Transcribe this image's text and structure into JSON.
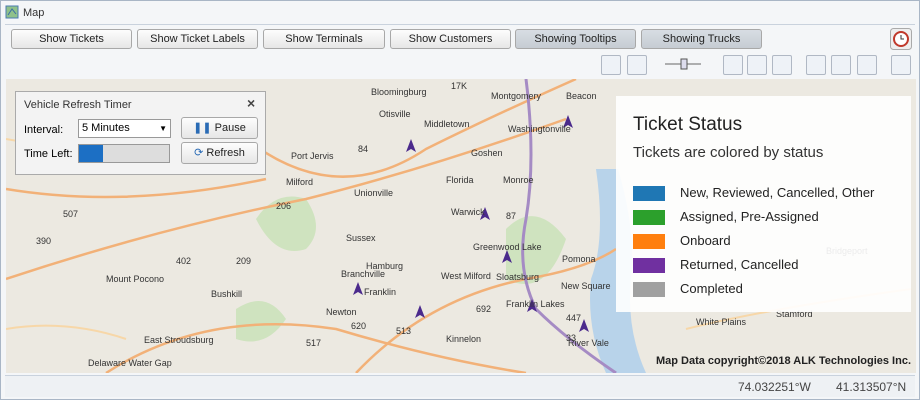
{
  "window": {
    "title": "Map"
  },
  "buttons": [
    "Show Tickets",
    "Show Ticket Labels",
    "Show Terminals",
    "Show Customers",
    "Showing Tooltips",
    "Showing Trucks"
  ],
  "timer": {
    "title": "Vehicle Refresh Timer",
    "interval_label": "Interval:",
    "interval_value": "5 Minutes",
    "time_left_label": "Time Left:",
    "pause": "Pause",
    "refresh": "Refresh"
  },
  "legend": {
    "title": "Ticket Status",
    "subtitle": "Tickets are colored by status",
    "items": [
      {
        "label": "New, Reviewed, Cancelled, Other",
        "color": "#1f77b4"
      },
      {
        "label": "Assigned, Pre-Assigned",
        "color": "#2ca02c"
      },
      {
        "label": "Onboard",
        "color": "#ff7f0e"
      },
      {
        "label": "Returned, Cancelled",
        "color": "#7030a0"
      },
      {
        "label": "Completed",
        "color": "#a0a0a0"
      }
    ]
  },
  "map": {
    "labels": [
      "Bloomingburg",
      "17K",
      "Montgomery",
      "Beacon",
      "Otisville",
      "Middletown",
      "Washingtonville",
      "84",
      "Port Jervis",
      "Goshen",
      "Milford",
      "206",
      "Unionville",
      "Florida",
      "Monroe",
      "209",
      "Warwick",
      "87",
      "Sussex",
      "Greenwood Lake",
      "402",
      "507",
      "390",
      "Branchville",
      "Hamburg",
      "West Milford",
      "Sloatsburg",
      "Pomona",
      "Mount Pocono",
      "Bushkill",
      "Franklin",
      "Newton",
      "New Square",
      "Bridgeport",
      "Kinnelon",
      "Franklin Lakes",
      "620",
      "692",
      "513",
      "517",
      "White Plains",
      "Stamford",
      "East Stroudsburg",
      "River Vale",
      "Delaware Water Gap",
      "447",
      "33"
    ],
    "copyright": "Map Data copyright©2018 ALK Technologies Inc."
  },
  "status": {
    "longitude": "74.032251°W",
    "latitude": "41.313507°N"
  }
}
